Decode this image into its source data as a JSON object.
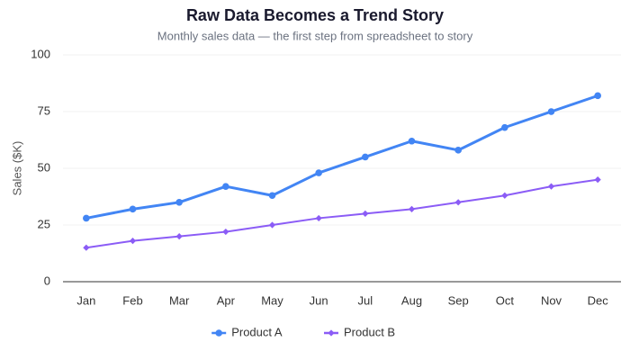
{
  "chart_data": {
    "type": "line",
    "title": "Raw Data Becomes a Trend Story",
    "subtitle": "Monthly sales data — the first step from spreadsheet to story",
    "y_label": "Sales ($K)",
    "categories": [
      "Jan",
      "Feb",
      "Mar",
      "Apr",
      "May",
      "Jun",
      "Jul",
      "Aug",
      "Sep",
      "Oct",
      "Nov",
      "Dec"
    ],
    "series": [
      {
        "name": "Product A",
        "color": "#4285f4",
        "marker": "circle",
        "values": [
          28,
          32,
          35,
          42,
          38,
          48,
          55,
          62,
          58,
          68,
          75,
          82
        ]
      },
      {
        "name": "Product B",
        "color": "#8b5cf6",
        "marker": "diamond",
        "values": [
          15,
          18,
          20,
          22,
          25,
          28,
          30,
          32,
          35,
          38,
          42,
          45
        ]
      }
    ],
    "ylim": [
      0,
      100
    ],
    "yticks": [
      0,
      25,
      50,
      75,
      100
    ],
    "grid": true,
    "legend": "bottom"
  }
}
